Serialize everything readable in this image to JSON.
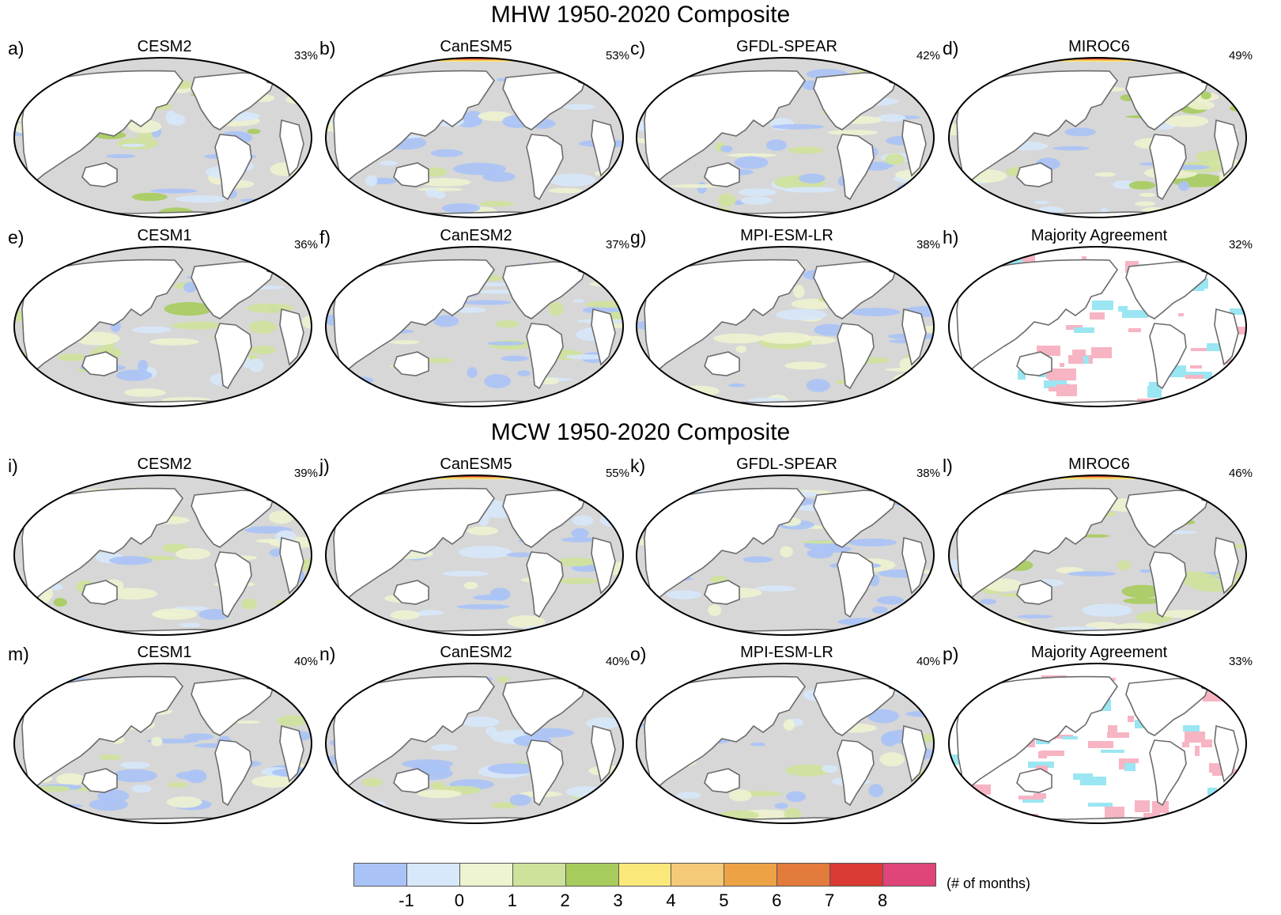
{
  "mhw_title": "MHW 1950-2020 Composite",
  "mcw_title": "MCW 1950-2020 Composite",
  "panels": [
    {
      "letter": "a)",
      "model": "CESM2",
      "pct": "33%",
      "style": "A",
      "arctic": 0
    },
    {
      "letter": "b)",
      "model": "CanESM5",
      "pct": "53%",
      "style": "B",
      "arctic": 2
    },
    {
      "letter": "c)",
      "model": "GFDL-SPEAR",
      "pct": "42%",
      "style": "B",
      "arctic": 0
    },
    {
      "letter": "d)",
      "model": "MIROC6",
      "pct": "49%",
      "style": "A",
      "arctic": 2
    },
    {
      "letter": "e)",
      "model": "CESM1",
      "pct": "36%",
      "style": "A",
      "arctic": 0
    },
    {
      "letter": "f)",
      "model": "CanESM2",
      "pct": "37%",
      "style": "B",
      "arctic": 0
    },
    {
      "letter": "g)",
      "model": "MPI-ESM-LR",
      "pct": "38%",
      "style": "B",
      "arctic": 0
    },
    {
      "letter": "h)",
      "model": "Majority Agreement",
      "pct": "32%",
      "style": "M",
      "arctic": 0
    },
    {
      "letter": "i)",
      "model": "CESM2",
      "pct": "39%",
      "style": "A",
      "arctic": 0
    },
    {
      "letter": "j)",
      "model": "CanESM5",
      "pct": "55%",
      "style": "B",
      "arctic": 2
    },
    {
      "letter": "k)",
      "model": "GFDL-SPEAR",
      "pct": "38%",
      "style": "B",
      "arctic": 0
    },
    {
      "letter": "l)",
      "model": "MIROC6",
      "pct": "46%",
      "style": "A",
      "arctic": 2
    },
    {
      "letter": "m)",
      "model": "CESM1",
      "pct": "40%",
      "style": "B",
      "arctic": 0
    },
    {
      "letter": "n)",
      "model": "CanESM2",
      "pct": "40%",
      "style": "B",
      "arctic": 0
    },
    {
      "letter": "o)",
      "model": "MPI-ESM-LR",
      "pct": "40%",
      "style": "B",
      "arctic": 0
    },
    {
      "letter": "p)",
      "model": "Majority Agreement",
      "pct": "33%",
      "style": "M",
      "arctic": 0
    }
  ],
  "colorbar": {
    "colors": [
      "#aac3f7",
      "#d7e8fb",
      "#eef3d0",
      "#cfe29b",
      "#a7cc5d",
      "#fbe87b",
      "#f4c977",
      "#eda246",
      "#e27b3c",
      "#d93b34",
      "#e0457a"
    ],
    "ticks": [
      "-1",
      "0",
      "1",
      "2",
      "3",
      "4",
      "5",
      "6",
      "7",
      "8"
    ],
    "unit": "(# of months)"
  },
  "agreement_colors": {
    "positive": "#f7b4c3",
    "negative": "#9ae6f2"
  },
  "ocean_color": "#d7d7d7",
  "land_color": "#ffffff"
}
